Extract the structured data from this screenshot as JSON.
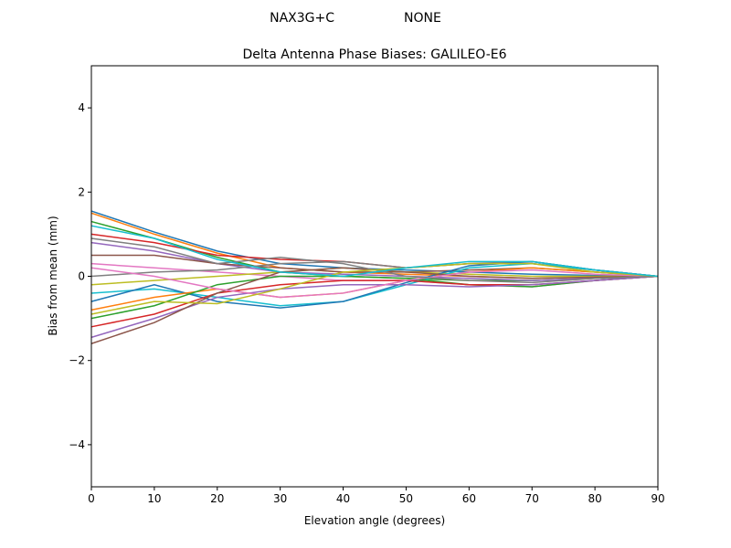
{
  "chart_data": {
    "type": "line",
    "suptitle_left": "NAX3G+C",
    "suptitle_right": "NONE",
    "title": "Delta Antenna Phase Biases: GALILEO-E6",
    "xlabel": "Elevation angle (degrees)",
    "ylabel": "Bias from mean (mm)",
    "xlim": [
      0,
      90
    ],
    "ylim": [
      -5,
      5
    ],
    "xticks": [
      0,
      10,
      20,
      30,
      40,
      50,
      60,
      70,
      80,
      90
    ],
    "yticks": [
      -4,
      -2,
      0,
      2,
      4
    ],
    "ytick_labels": [
      "−4",
      "−2",
      "0",
      "2",
      "4"
    ],
    "grid": false,
    "colors": [
      "#1f77b4",
      "#ff7f0e",
      "#2ca02c",
      "#d62728",
      "#9467bd",
      "#8c564b",
      "#e377c2",
      "#7f7f7f",
      "#bcbd22",
      "#17becf"
    ],
    "x": [
      0,
      10,
      20,
      30,
      40,
      50,
      60,
      70,
      80,
      90
    ],
    "series": [
      {
        "values": [
          1.55,
          1.05,
          0.6,
          0.3,
          0.2,
          0.15,
          0.1,
          0.05,
          0.02,
          0
        ]
      },
      {
        "values": [
          1.5,
          1.0,
          0.55,
          0.2,
          0.1,
          0.05,
          0.0,
          -0.05,
          -0.02,
          0
        ]
      },
      {
        "values": [
          1.3,
          0.9,
          0.45,
          0.1,
          0.0,
          -0.05,
          -0.1,
          -0.1,
          -0.05,
          0
        ]
      },
      {
        "values": [
          1.0,
          0.8,
          0.5,
          0.4,
          0.35,
          0.2,
          0.3,
          0.3,
          0.15,
          0
        ]
      },
      {
        "values": [
          0.8,
          0.6,
          0.3,
          0.1,
          0.05,
          0.0,
          -0.05,
          -0.1,
          -0.05,
          0
        ]
      },
      {
        "values": [
          0.5,
          0.5,
          0.3,
          0.2,
          0.1,
          0.1,
          0.15,
          0.2,
          0.1,
          0
        ]
      },
      {
        "values": [
          0.3,
          0.2,
          0.1,
          0.0,
          -0.1,
          -0.1,
          -0.2,
          -0.25,
          -0.1,
          0
        ]
      },
      {
        "values": [
          0.0,
          0.1,
          0.15,
          0.3,
          0.35,
          0.2,
          0.3,
          0.35,
          0.15,
          0
        ]
      },
      {
        "values": [
          -0.2,
          -0.1,
          0.0,
          0.1,
          0.2,
          0.1,
          0.05,
          0.0,
          0.0,
          0
        ]
      },
      {
        "values": [
          -0.4,
          -0.3,
          -0.5,
          -0.7,
          -0.6,
          -0.2,
          0.2,
          0.3,
          0.15,
          0
        ]
      },
      {
        "values": [
          -0.6,
          -0.2,
          -0.6,
          -0.75,
          -0.6,
          -0.15,
          0.25,
          0.35,
          0.15,
          0
        ]
      },
      {
        "values": [
          -0.8,
          -0.5,
          -0.3,
          -0.5,
          -0.4,
          -0.1,
          0.1,
          0.2,
          0.1,
          0
        ]
      },
      {
        "values": [
          -1.0,
          -0.7,
          -0.2,
          0.0,
          0.0,
          -0.05,
          -0.2,
          -0.25,
          -0.1,
          0
        ]
      },
      {
        "values": [
          -1.2,
          -0.9,
          -0.4,
          -0.2,
          -0.1,
          -0.1,
          -0.2,
          -0.2,
          -0.1,
          0
        ]
      },
      {
        "values": [
          -1.45,
          -1.0,
          -0.5,
          -0.3,
          -0.2,
          -0.2,
          -0.25,
          -0.2,
          -0.1,
          0
        ]
      },
      {
        "values": [
          -1.6,
          -1.1,
          -0.4,
          0.1,
          0.2,
          0.1,
          0.0,
          -0.05,
          -0.02,
          0
        ]
      },
      {
        "values": [
          0.2,
          0.0,
          -0.3,
          -0.5,
          -0.4,
          -0.1,
          0.1,
          0.15,
          0.05,
          0
        ]
      },
      {
        "values": [
          0.9,
          0.7,
          0.3,
          0.45,
          0.3,
          0.0,
          -0.1,
          -0.15,
          -0.05,
          0
        ]
      },
      {
        "values": [
          -0.9,
          -0.6,
          -0.65,
          -0.3,
          0.1,
          0.2,
          0.3,
          0.3,
          0.1,
          0
        ]
      },
      {
        "values": [
          1.2,
          0.9,
          0.4,
          0.1,
          0.0,
          0.2,
          0.35,
          0.35,
          0.15,
          0
        ]
      }
    ]
  }
}
